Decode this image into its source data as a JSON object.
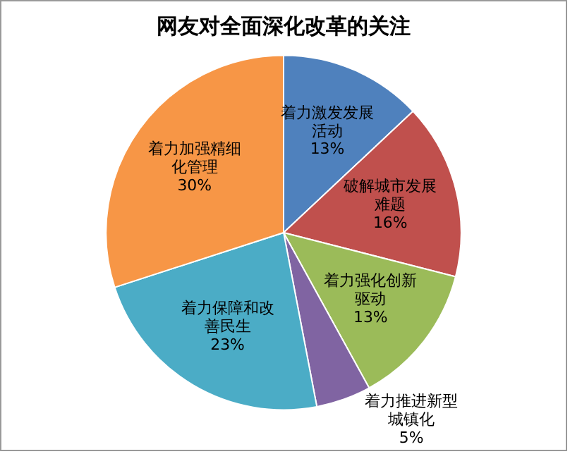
{
  "chart_data": {
    "type": "pie",
    "title": "网友对全面深化改革的关注",
    "categories": [
      "着力激发发展活动",
      "破解城市发展难题",
      "着力强化创新驱动",
      "着力推进新型城镇化",
      "着力保障和改善民生",
      "着力加强精细化管理"
    ],
    "values": [
      13,
      16,
      13,
      5,
      23,
      30
    ],
    "colors": [
      "#4f81bd",
      "#c0504d",
      "#9bbb59",
      "#8064a2",
      "#4bacc6",
      "#f79646"
    ],
    "value_labels": [
      "13%",
      "16%",
      "13%",
      "5%",
      "23%",
      "30%"
    ],
    "legend": false
  }
}
